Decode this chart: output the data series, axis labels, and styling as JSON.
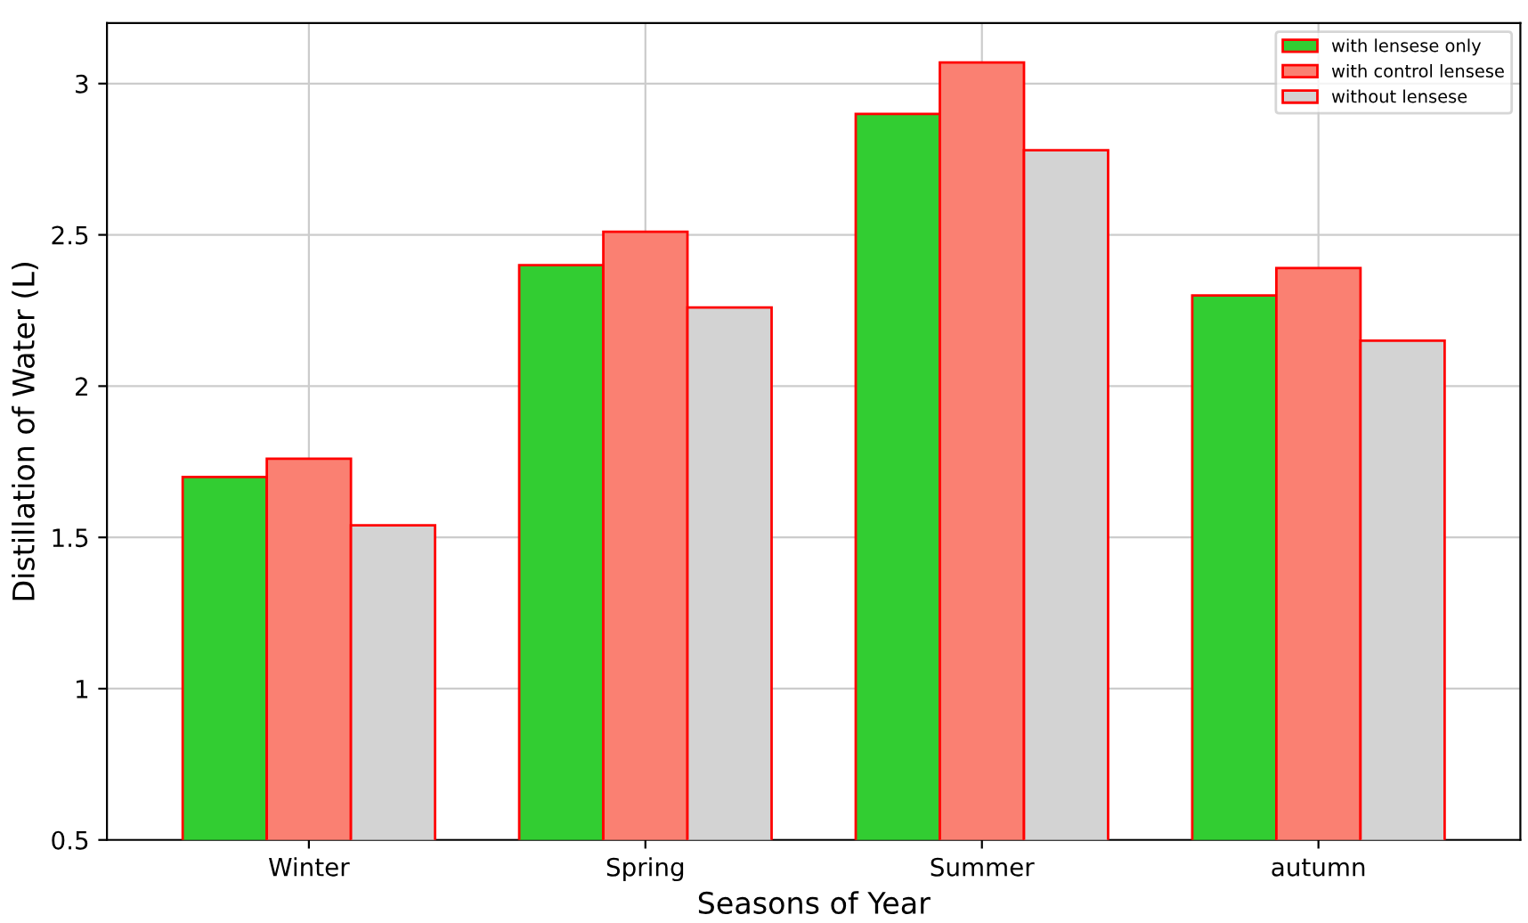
{
  "chart_data": {
    "type": "bar",
    "xlabel": "Seasons of Year",
    "ylabel": "Distillation of Water (L)",
    "categories": [
      "Winter",
      "Spring",
      "Summer",
      "autumn"
    ],
    "series": [
      {
        "name": "with lensese only",
        "color": "#32cd32",
        "values": [
          1.7,
          2.4,
          2.9,
          2.3
        ]
      },
      {
        "name": "with control lensese",
        "color": "#fa8072",
        "values": [
          1.76,
          2.51,
          3.07,
          2.39
        ]
      },
      {
        "name": "without lensese",
        "color": "#d3d3d3",
        "values": [
          1.54,
          2.26,
          2.78,
          2.15
        ]
      }
    ],
    "ylim": [
      0.5,
      3.2
    ],
    "yticks": [
      0.5,
      1,
      1.5,
      2,
      2.5,
      3
    ],
    "grid": true,
    "legend": "top right"
  }
}
